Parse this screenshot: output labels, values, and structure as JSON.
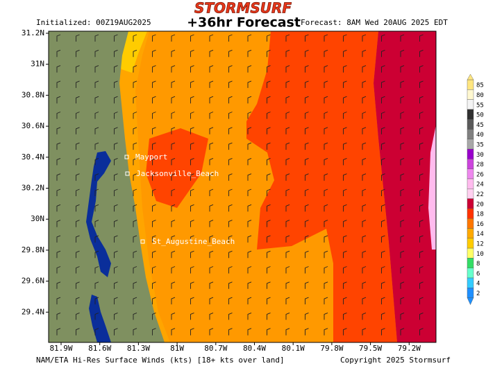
{
  "header": {
    "logo": "STORMSURF",
    "initialized": "Initialized: 00Z19AUG2025",
    "title": "+36hr Forecast",
    "forecast": "Forecast: 8AM Wed 20AUG 2025 EDT"
  },
  "map": {
    "lat_labels": [
      "31.2N",
      "31N",
      "30.8N",
      "30.6N",
      "30.4N",
      "30.2N",
      "30N",
      "29.8N",
      "29.6N",
      "29.4N"
    ],
    "lon_labels": [
      "81.9W",
      "81.6W",
      "81.3W",
      "81W",
      "80.7W",
      "80.4W",
      "80.1W",
      "79.8W",
      "79.5W",
      "79.2W"
    ],
    "places": [
      "Mayport",
      "Jacksonville_Beach",
      "St_Augustine_Beach"
    ]
  },
  "colorbar": {
    "labels": [
      85,
      80,
      55,
      50,
      45,
      40,
      35,
      30,
      28,
      26,
      24,
      22,
      20,
      18,
      16,
      14,
      12,
      10,
      8,
      6,
      4,
      2
    ],
    "colors": [
      "#ffe680",
      "#fff8d0",
      "#f4f4f4",
      "#303030",
      "#5a5a5a",
      "#808080",
      "#a8a8a8",
      "#9900cc",
      "#cc44dd",
      "#ee88ee",
      "#ffbbee",
      "#ffd0f0",
      "#cc0033",
      "#ff3300",
      "#ff7700",
      "#ffaa00",
      "#ffcc00",
      "#ffff66",
      "#33dd66",
      "#66ffcc",
      "#33ccff",
      "#1e90ff"
    ]
  },
  "footer": {
    "source": "NAM/ETA Hi-Res Surface Winds (kts) [18+ kts over land]",
    "copyright": "Copyright 2025 Stormsurf"
  }
}
